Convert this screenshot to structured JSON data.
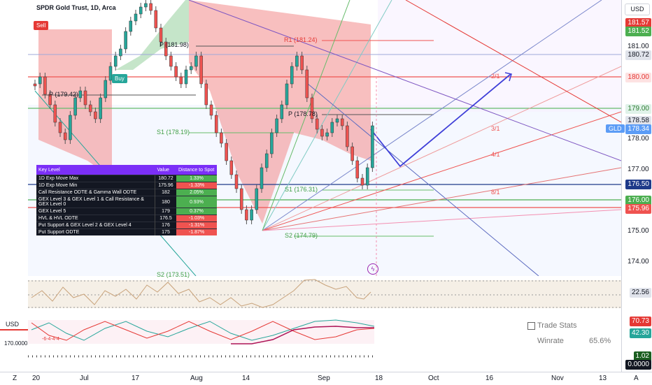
{
  "header": {
    "title": "SPDR Gold Trust, 1D, Arca"
  },
  "price_scale": {
    "currency_button": "USD",
    "ticks": [
      "181.00",
      "178.00",
      "177.00",
      "175.00",
      "174.00"
    ],
    "labels": [
      {
        "text": "181.57",
        "bg": "#e53935",
        "fg": "#ffffff"
      },
      {
        "text": "181.52",
        "bg": "#4caf50",
        "fg": "#ffffff"
      },
      {
        "text": "180.72",
        "bg": "#e0e3eb",
        "fg": "#131722"
      },
      {
        "text": "180.00",
        "bg": "#fde2e2",
        "fg": "#e53935"
      },
      {
        "text": "179.00",
        "bg": "#e0f2e9",
        "fg": "#2e7d32"
      },
      {
        "text": "178.58",
        "bg": "#e0e3eb",
        "fg": "#131722"
      },
      {
        "text": "178.34",
        "bg": "#5b9cf6",
        "fg": "#ffffff"
      },
      {
        "text": "176.50",
        "bg": "#1e3a8a",
        "fg": "#ffffff"
      },
      {
        "text": "176.00",
        "bg": "#4caf50",
        "fg": "#ffffff"
      },
      {
        "text": "175.96",
        "bg": "#ef5350",
        "fg": "#ffffff"
      },
      {
        "text": "22.56",
        "bg": "#e0e3eb",
        "fg": "#131722"
      },
      {
        "text": "70.73",
        "bg": "#e53935",
        "fg": "#ffffff"
      },
      {
        "text": "42.30",
        "bg": "#26a69a",
        "fg": "#ffffff"
      },
      {
        "text": "1.02",
        "bg": "#1b5e20",
        "fg": "#ffffff"
      },
      {
        "text": "0.0000",
        "bg": "#131722",
        "fg": "#ffffff"
      }
    ],
    "symbol_tag": "GLD"
  },
  "chart_labels": {
    "sell": "Sell",
    "buy": "Buy",
    "p1": "P (181.98)",
    "p2": "P (179.42)",
    "r1": "R1 (181.24)",
    "p3": "P (178.78)",
    "s1a": "S1 (178.19)",
    "s1b": "S1 (176.31)",
    "s2": "S2 (174.79)",
    "s2b": "S2 (173.51)",
    "g21": "2/1",
    "g31": "3/1",
    "g41": "4/1",
    "g81": "8/1"
  },
  "key_levels": {
    "headers": [
      "Key Level",
      "Value",
      "Distance to Spot"
    ],
    "rows": [
      {
        "label": "1D Exp Move Max",
        "value": "180.72",
        "distance": "1.33%",
        "dir": "pos"
      },
      {
        "label": "1D Exp Move Min",
        "value": "175.96",
        "distance": "-1.33%",
        "dir": "neg"
      },
      {
        "label": "Call Resistance ODTE & Gamma Wall ODTE",
        "value": "182",
        "distance": "2.05%",
        "dir": "pos"
      },
      {
        "label": "GEX Level 3 & GEX Level 1 & Call Resistance & GEX Level 0",
        "value": "180",
        "distance": "0.93%",
        "dir": "pos"
      },
      {
        "label": "GEX Level 5",
        "value": "179",
        "distance": "0.37%",
        "dir": "pos"
      },
      {
        "label": "HVL & HVL ODTE",
        "value": "176.5",
        "distance": "-1.03%",
        "dir": "neg"
      },
      {
        "label": "Put Support & GEX Level 2 & GEX Level 4",
        "value": "176",
        "distance": "-1.31%",
        "dir": "neg"
      },
      {
        "label": "Put Support ODTE",
        "value": "175",
        "distance": "-1.87%",
        "dir": "neg"
      }
    ]
  },
  "oscillator": {
    "usd_label": "USD",
    "left_value": "170.0000",
    "sub_value": "-6-4-4-4"
  },
  "stats": {
    "title": "Trade Stats",
    "winrate_label": "Winrate",
    "winrate_value": "65.6%"
  },
  "time_axis": {
    "labels": [
      "20",
      "Jul",
      "17",
      "Aug",
      "14",
      "Sep",
      "18",
      "Oct",
      "16",
      "Nov",
      "13"
    ],
    "z_icon": "Z",
    "a_icon": "A"
  },
  "colors": {
    "up": "#26a69a",
    "down": "#ef5350",
    "accent": "#7b2ff7"
  }
}
